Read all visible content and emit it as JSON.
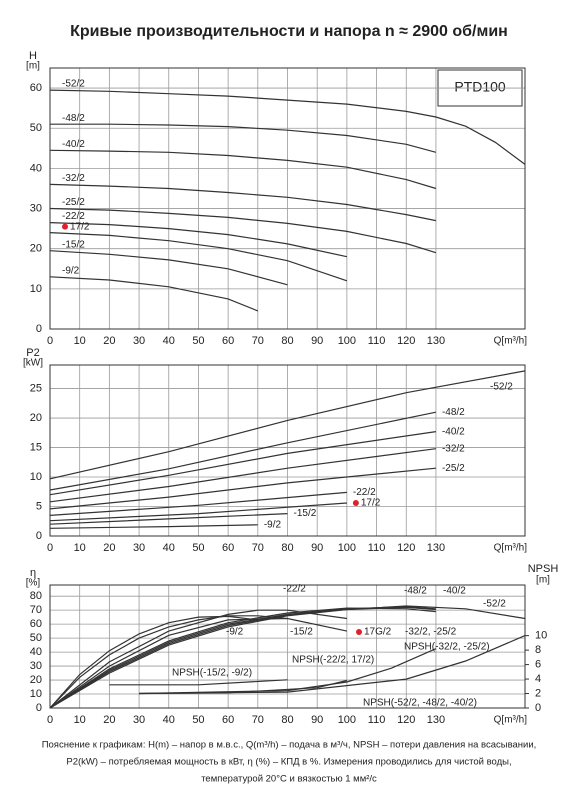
{
  "page": {
    "title": "Кривые производительности и напора n ≈ 2900 об/мин",
    "notes": [
      "Пояснение к графикам: H(m) – напор в м.в.с., Q(m³/h) – подача в м³/ч, NPSH – потери давления на всасывании,",
      "P2(kW) – потребляемая мощность в кВт, η (%) – КПД в %. Измерения проводились для чистой воды,",
      "температурой 20°С и вязкостью 1 мм²/с"
    ]
  },
  "chart_data": [
    {
      "type": "line",
      "model": "PTD100",
      "y_label": "H",
      "y_unit": "[m]",
      "x_label": "Q[m³/h]",
      "grid": true,
      "xlim": [
        0,
        160
      ],
      "xticks": [
        0,
        10,
        20,
        30,
        40,
        50,
        60,
        70,
        80,
        90,
        100,
        110,
        120,
        130
      ],
      "ylim": [
        0,
        65
      ],
      "yticks": [
        0,
        10,
        20,
        30,
        40,
        50,
        60
      ],
      "series": [
        {
          "name": "-52/2",
          "color": "#333333",
          "x": [
            0,
            20,
            40,
            60,
            80,
            100,
            120,
            130,
            140,
            150,
            160
          ],
          "values": [
            59.5,
            59.2,
            58.6,
            58,
            57,
            56,
            54.2,
            52.8,
            50.5,
            46.5,
            41
          ]
        },
        {
          "name": "-48/2",
          "color": "#333333",
          "x": [
            0,
            20,
            40,
            60,
            80,
            100,
            120,
            130
          ],
          "values": [
            51,
            51,
            50.8,
            50.4,
            49.5,
            48.2,
            46,
            44
          ]
        },
        {
          "name": "-40/2",
          "color": "#333333",
          "x": [
            0,
            20,
            40,
            60,
            80,
            100,
            120,
            130
          ],
          "values": [
            44.5,
            44.3,
            44,
            43.2,
            42,
            40.3,
            37.2,
            35
          ]
        },
        {
          "name": "-32/2",
          "color": "#333333",
          "x": [
            0,
            20,
            40,
            60,
            80,
            100,
            120,
            130
          ],
          "values": [
            36,
            35.6,
            35,
            34,
            32.8,
            31,
            28.5,
            27
          ]
        },
        {
          "name": "-25/2",
          "color": "#333333",
          "x": [
            0,
            20,
            40,
            60,
            80,
            100,
            120,
            130
          ],
          "values": [
            30,
            29.6,
            28.8,
            27.8,
            26.3,
            24.3,
            21.3,
            19
          ]
        },
        {
          "name": "-22/2",
          "color": "#333333",
          "x": [
            0,
            20,
            40,
            60,
            80,
            100
          ],
          "values": [
            26.5,
            26,
            25,
            23.5,
            21.2,
            18
          ]
        },
        {
          "name": "17/2",
          "color": "#333333",
          "marker_color": "#e0202a",
          "x": [
            0,
            20,
            40,
            60,
            80,
            100
          ],
          "values": [
            24,
            23.3,
            22,
            20,
            17,
            12
          ]
        },
        {
          "name": "-15/2",
          "color": "#333333",
          "x": [
            0,
            20,
            40,
            60,
            80
          ],
          "values": [
            19.5,
            18.6,
            17.2,
            15,
            11
          ]
        },
        {
          "name": "-9/2",
          "color": "#333333",
          "x": [
            0,
            20,
            40,
            60,
            70
          ],
          "values": [
            13,
            12.2,
            10.5,
            7.5,
            4.5
          ]
        }
      ]
    },
    {
      "type": "line",
      "y_label": "P2",
      "y_unit": "[kW]",
      "x_label": "Q[m³/h]",
      "grid": true,
      "xlim": [
        0,
        160
      ],
      "xticks": [
        0,
        10,
        20,
        30,
        40,
        50,
        60,
        70,
        80,
        90,
        100,
        110,
        120,
        130
      ],
      "ylim": [
        0,
        29
      ],
      "yticks": [
        0,
        5,
        10,
        15,
        20,
        25
      ],
      "series": [
        {
          "name": "-52/2",
          "color": "#333333",
          "x": [
            0,
            40,
            80,
            120,
            160
          ],
          "values": [
            9.7,
            14.3,
            19.6,
            24.3,
            28
          ]
        },
        {
          "name": "-48/2",
          "color": "#333333",
          "x": [
            0,
            40,
            80,
            130
          ],
          "values": [
            7.8,
            11.4,
            15.8,
            21
          ]
        },
        {
          "name": "-40/2",
          "color": "#333333",
          "x": [
            0,
            40,
            80,
            130
          ],
          "values": [
            7,
            10.3,
            14,
            17.7
          ]
        },
        {
          "name": "-32/2",
          "color": "#333333",
          "x": [
            0,
            40,
            80,
            130
          ],
          "values": [
            5.8,
            8.4,
            11.5,
            14.8
          ]
        },
        {
          "name": "-25/2",
          "color": "#333333",
          "x": [
            0,
            40,
            80,
            130
          ],
          "values": [
            4.6,
            6.6,
            9,
            11.5
          ]
        },
        {
          "name": "-22/2",
          "color": "#333333",
          "x": [
            0,
            50,
            100
          ],
          "values": [
            3.5,
            5.2,
            7.4
          ]
        },
        {
          "name": "17/2",
          "color": "#333333",
          "marker_color": "#e0202a",
          "x": [
            0,
            50,
            100
          ],
          "values": [
            2.6,
            3.8,
            5.6
          ]
        },
        {
          "name": "-15/2",
          "color": "#333333",
          "x": [
            0,
            40,
            80
          ],
          "values": [
            2,
            2.9,
            3.8
          ]
        },
        {
          "name": "-9/2",
          "color": "#333333",
          "x": [
            0,
            40,
            70
          ],
          "values": [
            1.3,
            1.6,
            1.9
          ]
        }
      ]
    },
    {
      "type": "line",
      "y_label": "η",
      "y_unit": "[%]",
      "y2_label": "NPSH",
      "y2_unit": "[m]",
      "x_label": "Q[m³/h]",
      "grid": true,
      "xlim": [
        0,
        160
      ],
      "xticks": [
        0,
        10,
        20,
        30,
        40,
        50,
        60,
        70,
        80,
        90,
        100,
        110,
        120,
        130
      ],
      "ylim": [
        0,
        88
      ],
      "yticks": [
        0,
        10,
        20,
        30,
        40,
        50,
        60,
        70,
        80
      ],
      "y2lim": [
        0,
        17
      ],
      "y2ticks": [
        0,
        2,
        4,
        6,
        8,
        10
      ],
      "series": [
        {
          "name": "-9/2",
          "color": "#333333",
          "x": [
            0,
            10,
            20,
            30,
            40,
            50,
            60,
            70
          ],
          "values": [
            0,
            24,
            41,
            53,
            61,
            65,
            65.5,
            63
          ]
        },
        {
          "name": "-15/2",
          "color": "#333333",
          "x": [
            0,
            10,
            20,
            30,
            40,
            50,
            60,
            70,
            80
          ],
          "values": [
            0,
            22,
            38,
            50,
            58,
            63,
            66,
            66,
            64
          ]
        },
        {
          "name": "-22/2",
          "color": "#333333",
          "x": [
            0,
            20,
            40,
            60,
            70,
            80,
            100
          ],
          "values": [
            0,
            33,
            55,
            67,
            70,
            70,
            64
          ]
        },
        {
          "name": "17G/2",
          "color": "#333333",
          "marker_color": "#e0202a",
          "x": [
            0,
            20,
            40,
            60,
            80,
            100
          ],
          "values": [
            0,
            30,
            52,
            63,
            64,
            55
          ]
        },
        {
          "name": "-32/2, -25/2",
          "color": "#333333",
          "x": [
            0,
            20,
            40,
            60,
            80,
            100,
            120,
            130
          ],
          "values": [
            0,
            28,
            48,
            61,
            68,
            71.5,
            71,
            69
          ]
        },
        {
          "name": "-48/2",
          "color": "#333333",
          "x": [
            0,
            20,
            40,
            60,
            80,
            100,
            120,
            130
          ],
          "values": [
            0,
            27,
            47,
            60,
            67,
            71,
            72.5,
            71
          ]
        },
        {
          "name": "-40/2",
          "color": "#333333",
          "x": [
            0,
            20,
            40,
            60,
            80,
            100,
            120,
            130
          ],
          "values": [
            0,
            26,
            46,
            59,
            66.5,
            70.5,
            72,
            70.5
          ]
        },
        {
          "name": "-52/2",
          "color": "#333333",
          "x": [
            0,
            20,
            40,
            60,
            80,
            100,
            120,
            140,
            160
          ],
          "values": [
            0,
            25,
            45,
            58,
            66,
            70.5,
            73,
            71,
            64
          ]
        },
        {
          "name": "NPSH(-15/2, -9/2)",
          "color": "#333333",
          "axis": "y2",
          "x": [
            20,
            50,
            80
          ],
          "values": [
            3.2,
            3.2,
            3.9
          ]
        },
        {
          "name": "NPSH(-22/2, 17/2)",
          "color": "#333333",
          "axis": "y2",
          "x": [
            30,
            60,
            90,
            100
          ],
          "values": [
            2,
            2.1,
            2.8,
            3.8
          ]
        },
        {
          "name": "NPSH(-32/2, -25/2)",
          "color": "#333333",
          "axis": "y2",
          "x": [
            30,
            80,
            100,
            115,
            130
          ],
          "values": [
            2,
            2.4,
            3.6,
            5.5,
            8.2
          ]
        },
        {
          "name": "NPSH(-52/2, -48/2, -40/2)",
          "color": "#333333",
          "axis": "y2",
          "x": [
            30,
            80,
            120,
            140,
            160
          ],
          "values": [
            2,
            2.2,
            4,
            6.5,
            10
          ]
        }
      ]
    }
  ]
}
